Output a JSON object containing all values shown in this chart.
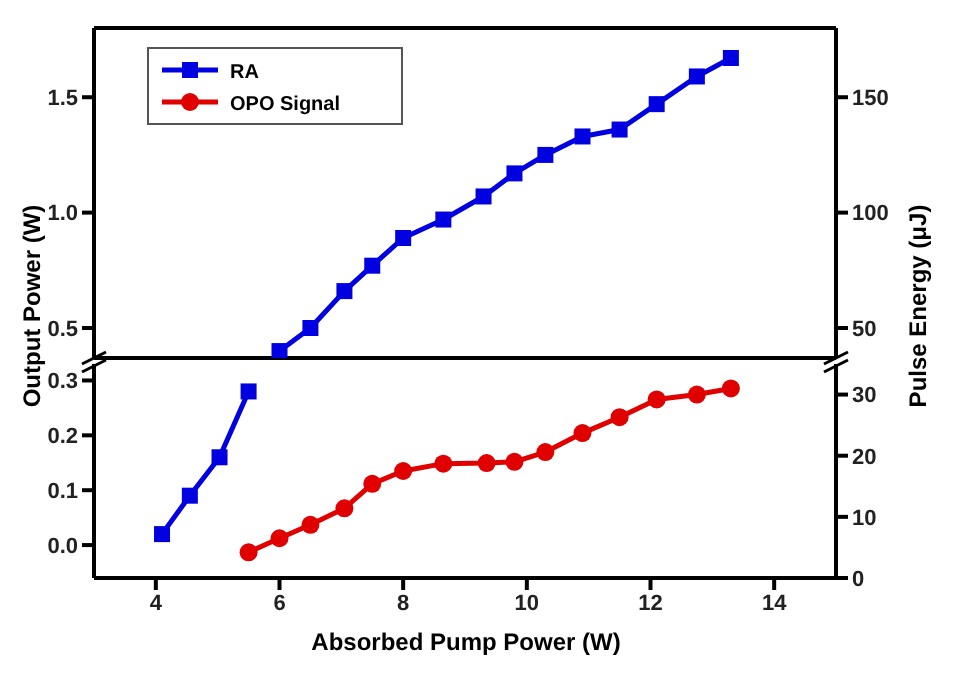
{
  "chart_data": [
    {
      "type": "line",
      "ylabel": "Output Power (W)",
      "y2label": "Pulse Energy (μJ)",
      "xlim": [
        3,
        15
      ],
      "ylim": [
        0.37,
        1.8
      ],
      "yticks": [
        {
          "value": 0.5,
          "label": "0.5"
        },
        {
          "value": 1,
          "label": "1.0"
        },
        {
          "value": 1.5,
          "label": "1.5"
        }
      ],
      "y2lim": [
        37,
        180
      ],
      "y2ticks": [
        50,
        100,
        150
      ],
      "tick_labels": "y",
      "legend": "top left",
      "grid": false,
      "line_style": "solid",
      "series": [
        {
          "name": "RA",
          "color": "#0000e0",
          "marker": "square",
          "x": [
            6.0,
            6.5,
            7.05,
            7.5,
            8.0,
            8.65,
            9.3,
            9.8,
            10.3,
            10.9,
            11.5,
            12.1,
            12.75,
            13.3
          ],
          "values": [
            0.4,
            0.5,
            0.66,
            0.77,
            0.89,
            0.97,
            1.07,
            1.17,
            1.25,
            1.33,
            1.36,
            1.47,
            1.59,
            1.67
          ]
        },
        {
          "name": "OPO Signal",
          "color": "#e00000",
          "marker": "circle"
        }
      ]
    },
    {
      "type": "line",
      "xlabel": "Absorbed  Pump Power (W)",
      "xlim": [
        3,
        15
      ],
      "xticks": [
        4,
        6,
        8,
        10,
        12,
        14
      ],
      "ylim": [
        -0.06,
        0.33
      ],
      "yticks": [
        {
          "value": 0,
          "label": "0.0"
        },
        {
          "value": 0.1,
          "label": "0.1"
        },
        {
          "value": 0.2,
          "label": "0.2"
        },
        {
          "value": 0.3,
          "label": "0.3"
        }
      ],
      "y2lim": [
        0,
        35
      ],
      "y2ticks": [
        0,
        10,
        20,
        30
      ],
      "legend": false,
      "grid": false,
      "line_style": "solid",
      "series": [
        {
          "color": "#0000e0",
          "marker": "square",
          "x": [
            4.1,
            4.55,
            5.03,
            5.5
          ],
          "values": [
            0.02,
            0.09,
            0.16,
            0.28
          ]
        },
        {
          "color": "#e00000",
          "marker": "circle",
          "axis": "y2",
          "x": [
            5.5,
            6.0,
            6.5,
            7.05,
            7.5,
            8.0,
            8.65,
            9.35,
            9.8,
            10.3,
            10.9,
            11.5,
            12.1,
            12.75,
            13.3
          ],
          "values": [
            4.2,
            6.5,
            8.7,
            11.4,
            15.4,
            17.5,
            18.7,
            18.8,
            19.0,
            20.6,
            23.7,
            26.3,
            29.2,
            30,
            31
          ]
        }
      ]
    }
  ]
}
